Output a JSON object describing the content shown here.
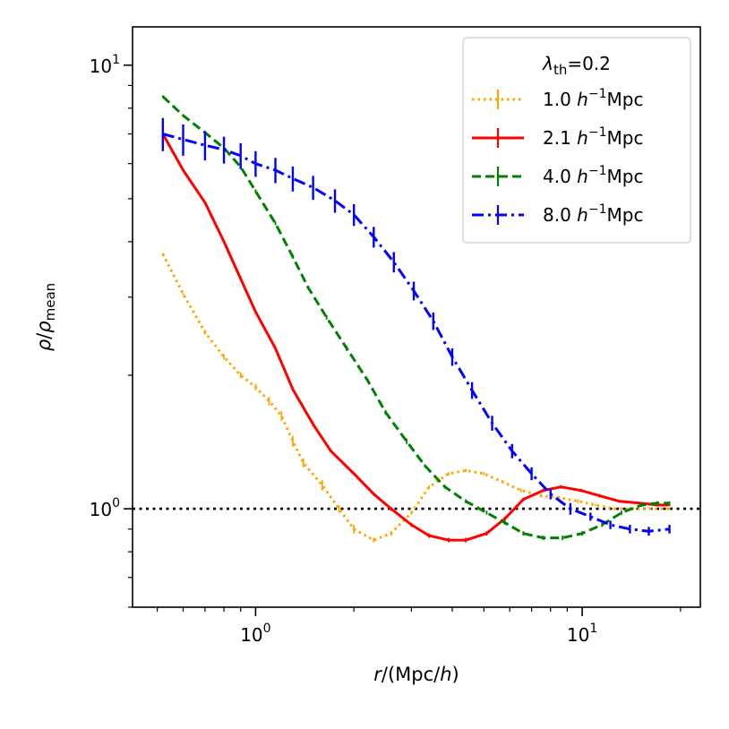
{
  "chart_data": {
    "type": "line",
    "xscale": "log",
    "yscale": "log",
    "xlabel": "r/(Mpc/h)",
    "ylabel": "ρ/ρ_mean",
    "xlim": [
      0.42,
      23
    ],
    "ylim": [
      0.6,
      12.2
    ],
    "x_ticks": [
      {
        "value": 1,
        "base": "10",
        "exp": "0"
      },
      {
        "value": 10,
        "base": "10",
        "exp": "1"
      }
    ],
    "y_ticks": [
      {
        "value": 1,
        "base": "10",
        "exp": "0"
      },
      {
        "value": 10,
        "base": "10",
        "exp": "1"
      }
    ],
    "reference_line": {
      "y": 1.0,
      "style": "dotted",
      "color": "#000000"
    },
    "legend": {
      "title": "λ_th=0.2",
      "position": "top-right"
    },
    "series": [
      {
        "name": "1.0 h^{-1}Mpc",
        "scale_value": "1.0",
        "unit_prefix": "h",
        "unit_exp": "−1",
        "unit_suffix": "Mpc",
        "color": "#FFA500",
        "dash": "dotted",
        "x": [
          0.52,
          0.6,
          0.7,
          0.8,
          0.9,
          1.0,
          1.1,
          1.2,
          1.3,
          1.4,
          1.6,
          1.8,
          2.0,
          2.3,
          2.6,
          3.0,
          3.4,
          3.9,
          4.4,
          5.0,
          5.7,
          6.5,
          7.5,
          8.5,
          9.7,
          11,
          12.5,
          14.2,
          16.2,
          18.5
        ],
        "y": [
          3.75,
          3.05,
          2.5,
          2.2,
          2.0,
          1.88,
          1.75,
          1.62,
          1.42,
          1.27,
          1.13,
          1.0,
          0.9,
          0.85,
          0.88,
          0.98,
          1.12,
          1.2,
          1.22,
          1.2,
          1.15,
          1.1,
          1.07,
          1.06,
          1.04,
          1.02,
          1.0,
          1.0,
          1.0,
          1.0
        ],
        "err": [
          0.02,
          0.02,
          0.03,
          0.03,
          0.03,
          0.03,
          0.04,
          0.04,
          0.04,
          0.03,
          0.03,
          0.02,
          0.02,
          0.01,
          0.01,
          0.01,
          0.01,
          0.01,
          0.01,
          0.01,
          0.01,
          0.01,
          0.01,
          0.01,
          0.01,
          0.005,
          0.005,
          0.005,
          0.005,
          0.005
        ]
      },
      {
        "name": "2.1 h^{-1}Mpc",
        "scale_value": "2.1",
        "unit_prefix": "h",
        "unit_exp": "−1",
        "unit_suffix": "Mpc",
        "color": "#FF0000",
        "dash": "solid",
        "x": [
          0.52,
          0.6,
          0.7,
          0.8,
          0.9,
          1.0,
          1.15,
          1.3,
          1.5,
          1.7,
          2.0,
          2.3,
          2.6,
          3.0,
          3.4,
          3.9,
          4.4,
          5.1,
          5.8,
          6.6,
          7.6,
          8.6,
          9.9,
          11.3,
          13,
          15,
          17,
          18.5
        ],
        "y": [
          7.0,
          5.8,
          4.9,
          4.0,
          3.3,
          2.78,
          2.3,
          1.86,
          1.55,
          1.35,
          1.2,
          1.08,
          1.0,
          0.92,
          0.87,
          0.85,
          0.85,
          0.88,
          0.95,
          1.05,
          1.1,
          1.12,
          1.1,
          1.07,
          1.04,
          1.03,
          1.02,
          1.02
        ],
        "err": [
          0.03,
          0.03,
          0.03,
          0.03,
          0.03,
          0.02,
          0.02,
          0.02,
          0.02,
          0.01,
          0.01,
          0.01,
          0.01,
          0.01,
          0.01,
          0.01,
          0.01,
          0.01,
          0.01,
          0.01,
          0.01,
          0.01,
          0.01,
          0.01,
          0.005,
          0.005,
          0.005,
          0.005
        ]
      },
      {
        "name": "4.0 h^{-1}Mpc",
        "scale_value": "4.0",
        "unit_prefix": "h",
        "unit_exp": "−1",
        "unit_suffix": "Mpc",
        "color": "#008000",
        "dash": "dashed",
        "x": [
          0.52,
          0.6,
          0.7,
          0.8,
          0.9,
          1.0,
          1.15,
          1.3,
          1.45,
          1.65,
          1.9,
          2.2,
          2.5,
          2.9,
          3.3,
          3.8,
          4.4,
          5.1,
          5.8,
          6.6,
          7.6,
          8.7,
          10,
          11.5,
          13.2,
          15.2,
          17,
          18.5
        ],
        "y": [
          8.5,
          7.7,
          7.05,
          6.5,
          5.9,
          5.2,
          4.4,
          3.7,
          3.15,
          2.7,
          2.3,
          1.95,
          1.65,
          1.42,
          1.25,
          1.12,
          1.04,
          0.98,
          0.93,
          0.88,
          0.86,
          0.86,
          0.88,
          0.92,
          0.98,
          1.02,
          1.03,
          1.03
        ],
        "err": [
          0.05,
          0.05,
          0.05,
          0.05,
          0.05,
          0.05,
          0.04,
          0.04,
          0.03,
          0.03,
          0.03,
          0.02,
          0.02,
          0.02,
          0.01,
          0.01,
          0.01,
          0.01,
          0.01,
          0.01,
          0.01,
          0.01,
          0.01,
          0.01,
          0.01,
          0.01,
          0.01,
          0.01
        ]
      },
      {
        "name": "8.0 h^{-1}Mpc",
        "scale_value": "8.0",
        "unit_prefix": "h",
        "unit_exp": "−1",
        "unit_suffix": "Mpc",
        "color": "#0000FF",
        "dash": "dashdot",
        "x": [
          0.52,
          0.6,
          0.7,
          0.8,
          0.9,
          1.0,
          1.15,
          1.3,
          1.5,
          1.75,
          2.0,
          2.3,
          2.65,
          3.05,
          3.5,
          4.0,
          4.6,
          5.3,
          6.1,
          7.0,
          8.0,
          9.2,
          10.6,
          12.2,
          14,
          16,
          18.5
        ],
        "y": [
          7.0,
          6.8,
          6.6,
          6.45,
          6.25,
          6.0,
          5.8,
          5.55,
          5.3,
          4.95,
          4.6,
          4.1,
          3.6,
          3.1,
          2.65,
          2.2,
          1.85,
          1.56,
          1.35,
          1.2,
          1.08,
          1.0,
          0.96,
          0.92,
          0.9,
          0.89,
          0.9
        ],
        "err": [
          0.6,
          0.55,
          0.5,
          0.45,
          0.42,
          0.4,
          0.38,
          0.36,
          0.33,
          0.3,
          0.26,
          0.22,
          0.19,
          0.15,
          0.12,
          0.1,
          0.08,
          0.06,
          0.05,
          0.04,
          0.03,
          0.03,
          0.02,
          0.02,
          0.02,
          0.02,
          0.02
        ]
      }
    ]
  }
}
